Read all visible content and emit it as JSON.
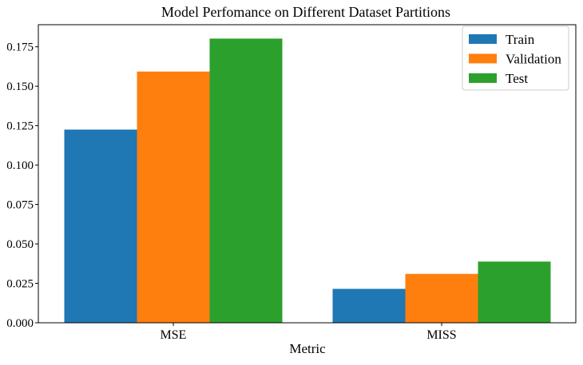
{
  "chart_data": {
    "type": "bar",
    "title": "Model Perfomance on Different Dataset Partitions",
    "xlabel": "Metric",
    "ylabel": "",
    "categories": [
      "MSE",
      "MISS"
    ],
    "series": [
      {
        "name": "Train",
        "color": "#1f77b4",
        "values": [
          0.1225,
          0.0215
        ]
      },
      {
        "name": "Validation",
        "color": "#ff7f0e",
        "values": [
          0.1593,
          0.031
        ]
      },
      {
        "name": "Test",
        "color": "#2ca02c",
        "values": [
          0.1802,
          0.0388
        ]
      }
    ],
    "ylim": [
      0,
      0.189
    ],
    "yticks": [
      "0.000",
      "0.025",
      "0.050",
      "0.075",
      "0.100",
      "0.125",
      "0.150",
      "0.175"
    ],
    "legend_position": "top-right",
    "grid": false
  }
}
